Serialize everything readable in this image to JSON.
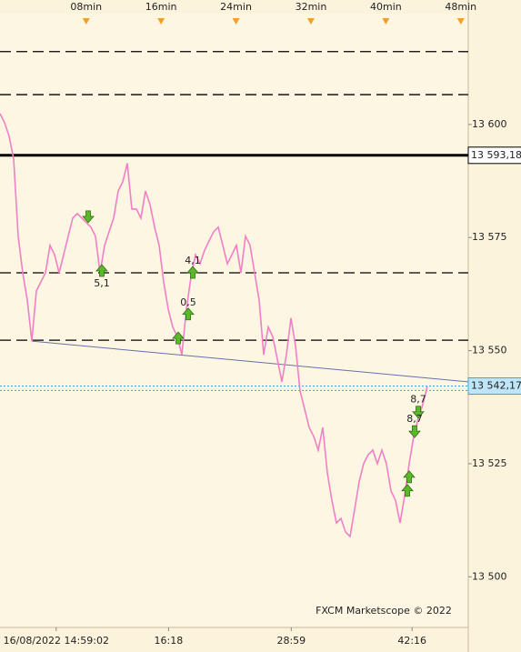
{
  "chart_data": {
    "type": "line",
    "watermark": "FXCM Marketscope © 2022",
    "color": "#f27fc6",
    "background": "#fdf6e3",
    "x": [
      -1.2,
      -0.71,
      -0.23,
      0.26,
      0.74,
      1.23,
      1.71,
      2.2,
      2.68,
      3.17,
      3.65,
      4.14,
      4.63,
      5.11,
      5.6,
      6.08,
      6.57,
      7.05,
      7.54,
      8.02,
      8.51,
      8.99,
      9.48,
      9.97,
      10.45,
      10.94,
      11.42,
      11.91,
      12.39,
      12.88,
      13.36,
      13.85,
      14.33,
      14.82,
      15.3,
      15.79,
      16.28,
      16.76,
      17.25,
      17.73,
      18.22,
      18.7,
      19.19,
      19.67,
      20.16,
      20.64,
      21.13,
      21.62,
      22.1,
      22.59,
      23.07,
      23.56,
      24.04,
      24.53,
      25.01,
      25.5,
      25.98,
      26.47,
      26.96,
      27.44,
      27.93,
      28.41,
      28.9,
      29.38,
      29.87,
      30.35,
      30.84,
      31.32,
      31.81,
      32.3,
      32.78,
      33.27,
      33.75,
      34.24,
      34.72,
      35.21,
      35.69,
      36.18,
      36.66,
      37.15,
      37.63,
      38.12,
      38.61,
      39.09,
      39.58,
      40.06,
      40.55,
      41.03,
      41.52,
      42.0,
      42.49,
      42.97,
      43.46,
      43.95,
      44.43
    ],
    "values": [
      13602.4,
      13600.4,
      13597.4,
      13592.4,
      13575.3,
      13567.2,
      13561.2,
      13552.1,
      13563.2,
      13565.2,
      13567.2,
      13573.3,
      13571.2,
      13567.2,
      13571.2,
      13575.3,
      13579.3,
      13580.3,
      13579.3,
      13578.3,
      13577.3,
      13575.3,
      13567.2,
      13573.3,
      13576.3,
      13579.3,
      13585.3,
      13587.3,
      13591.4,
      13581.3,
      13581.3,
      13579.3,
      13585.3,
      13582.3,
      13577.3,
      13573.3,
      13565.2,
      13559.2,
      13555.2,
      13553.1,
      13549.1,
      13559.2,
      13566.2,
      13571.2,
      13569.2,
      13572.2,
      13574.3,
      13576.3,
      13577.3,
      13573.3,
      13569.2,
      13571.2,
      13573.3,
      13567.2,
      13575.3,
      13573.3,
      13567.2,
      13561.2,
      13549.1,
      13555.2,
      13553.1,
      13548.1,
      13543.1,
      13549.1,
      13557.2,
      13551.1,
      13541.1,
      13537.1,
      13533.0,
      13531.0,
      13528.0,
      13533.0,
      13523.0,
      13516.9,
      13511.9,
      13512.9,
      13509.9,
      13508.9,
      13514.9,
      13521.0,
      13525.0,
      13527.0,
      13528.0,
      13525.0,
      13528.0,
      13525.0,
      13519.0,
      13516.9,
      13511.9,
      13517.9,
      13525.0,
      13531.0,
      13535.0,
      13538.1,
      13542.1
    ],
    "xlim": [
      -1.2,
      48.8
    ],
    "ylim": [
      13488.8,
      13624.5
    ],
    "xticks": [
      {
        "value": 8,
        "label": "08min"
      },
      {
        "value": 16,
        "label": "16min"
      },
      {
        "value": 24,
        "label": "24min"
      },
      {
        "value": 32,
        "label": "32min"
      },
      {
        "value": 40,
        "label": "40min"
      },
      {
        "value": 48,
        "label": "48min"
      }
    ],
    "x2ticks": [
      {
        "value": 4.8,
        "label": "16/08/2022 14:59:02"
      },
      {
        "value": 16.8,
        "label": "16:18"
      },
      {
        "value": 29.9,
        "label": "28:59"
      },
      {
        "value": 42.8,
        "label": "42:16"
      }
    ],
    "yticks": [
      {
        "value": 13600,
        "label": "13 600"
      },
      {
        "value": 13575,
        "label": "13 575"
      },
      {
        "value": 13550,
        "label": "13 550"
      },
      {
        "value": 13525,
        "label": "13 525"
      },
      {
        "value": 13500,
        "label": "13 500"
      }
    ],
    "levels": [
      {
        "value": 13616.1,
        "style": "dashed",
        "color": "#000000"
      },
      {
        "value": 13606.6,
        "style": "dashed",
        "color": "#000000"
      },
      {
        "value": 13593.18,
        "style": "solid",
        "color": "#000000",
        "label": "13 593,18"
      },
      {
        "value": 13567.2,
        "style": "dashed",
        "color": "#000000"
      },
      {
        "value": 13552.3,
        "style": "dashed",
        "color": "#000000"
      },
      {
        "value": 13542.17,
        "style": "dotted",
        "color": "#3aa6d8",
        "label": "13 542,17"
      },
      {
        "value": 13541.2,
        "style": "dotted",
        "color": "#3aa6d8"
      }
    ],
    "trendline": {
      "x": [
        2.2,
        48.8
      ],
      "values": [
        13552.1,
        13543.1
      ],
      "color": "#6670a8"
    },
    "annotations": [
      {
        "x": 8.22,
        "y": 13579.7,
        "dir": "down"
      },
      {
        "x": 9.67,
        "y": 13567.6,
        "dir": "up",
        "label": "5,1",
        "label_pos": "below"
      },
      {
        "x": 19.38,
        "y": 13567.2,
        "dir": "up",
        "label": "4,1",
        "label_pos": "above"
      },
      {
        "x": 18.9,
        "y": 13558.0,
        "dir": "up",
        "label": "0,5",
        "label_pos": "above"
      },
      {
        "x": 17.83,
        "y": 13552.7,
        "dir": "up"
      },
      {
        "x": 43.46,
        "y": 13536.5,
        "dir": "down",
        "label": "8,7",
        "label_pos": "above"
      },
      {
        "x": 43.07,
        "y": 13532.2,
        "dir": "down",
        "label": "8,7",
        "label_pos": "above"
      },
      {
        "x": 42.49,
        "y": 13522.0,
        "dir": "up"
      },
      {
        "x": 42.3,
        "y": 13519.0,
        "dir": "up"
      }
    ]
  }
}
